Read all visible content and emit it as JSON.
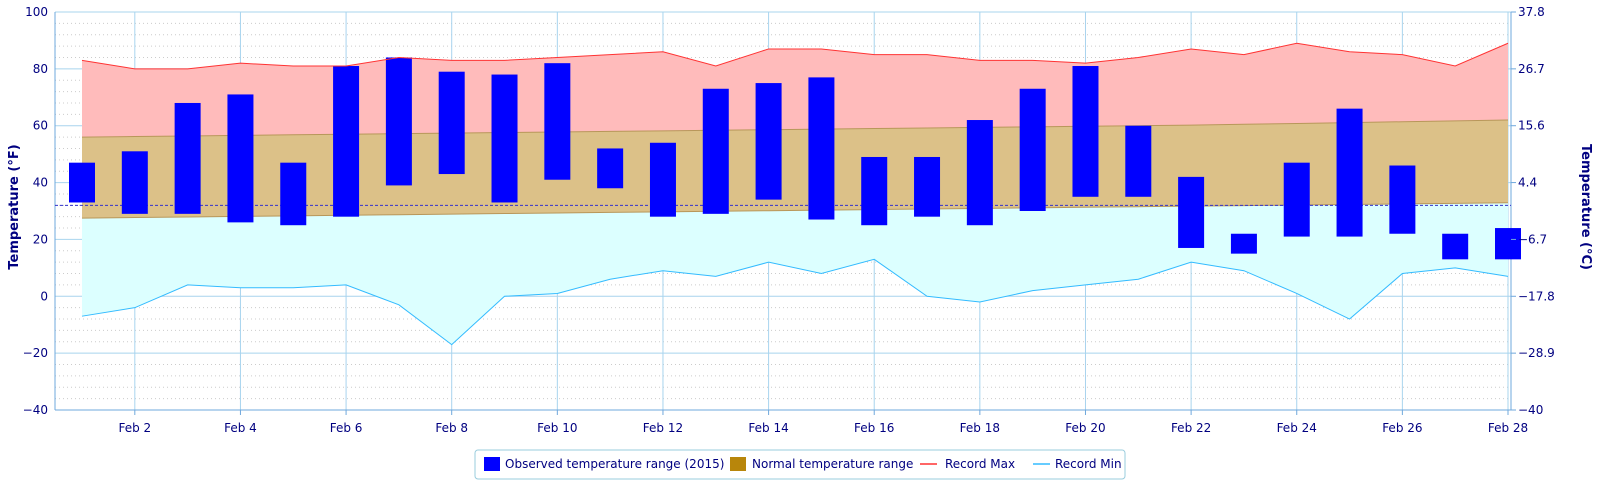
{
  "chart_data": {
    "type": "bar",
    "x": [
      "Feb 1",
      "Feb 2",
      "Feb 3",
      "Feb 4",
      "Feb 5",
      "Feb 6",
      "Feb 7",
      "Feb 8",
      "Feb 9",
      "Feb 10",
      "Feb 11",
      "Feb 12",
      "Feb 13",
      "Feb 14",
      "Feb 15",
      "Feb 16",
      "Feb 17",
      "Feb 18",
      "Feb 19",
      "Feb 20",
      "Feb 21",
      "Feb 22",
      "Feb 23",
      "Feb 24",
      "Feb 25",
      "Feb 26",
      "Feb 27",
      "Feb 28"
    ],
    "x_tick_labels": [
      "Feb 2",
      "Feb 4",
      "Feb 6",
      "Feb 8",
      "Feb 10",
      "Feb 12",
      "Feb 14",
      "Feb 16",
      "Feb 18",
      "Feb 20",
      "Feb 22",
      "Feb 24",
      "Feb 26",
      "Feb 28"
    ],
    "ylabel_left": "Temperature (°F)",
    "ylabel_right": "Temperature (°C)",
    "ylim": [
      -40,
      100
    ],
    "y_ticks_left": [
      "100",
      "80",
      "60",
      "40",
      "20",
      "0",
      "−20",
      "−40"
    ],
    "y_ticks_right": [
      "37.8",
      "26.7",
      "15.6",
      "4.4",
      "−6.7",
      "−17.8",
      "−28.9",
      "−40"
    ],
    "grid": true,
    "freezing_line": 32,
    "series": [
      {
        "name": "Observed temperature range (2015)",
        "color": "#0000ff",
        "low": [
          33,
          29,
          29,
          26,
          25,
          28,
          39,
          43,
          33,
          41,
          38,
          28,
          29,
          34,
          27,
          25,
          28,
          25,
          30,
          35,
          35,
          17,
          15,
          21,
          21,
          22,
          13,
          13
        ],
        "high": [
          47,
          51,
          68,
          71,
          47,
          81,
          84,
          79,
          78,
          82,
          52,
          54,
          73,
          75,
          77,
          49,
          49,
          62,
          73,
          81,
          60,
          42,
          22,
          47,
          66,
          46,
          22,
          24
        ]
      },
      {
        "name": "Normal temperature range",
        "color": "#b8860b",
        "low": [
          27.5,
          27.7,
          27.9,
          28.1,
          28.3,
          28.5,
          28.7,
          28.9,
          29.1,
          29.3,
          29.5,
          29.7,
          29.9,
          30.1,
          30.3,
          30.5,
          30.7,
          30.9,
          31.1,
          31.3,
          31.5,
          31.7,
          31.9,
          32.1,
          32.3,
          32.5,
          32.7,
          32.9
        ],
        "high": [
          56,
          56.2,
          56.4,
          56.6,
          56.8,
          57,
          57.2,
          57.4,
          57.6,
          57.8,
          58,
          58.2,
          58.4,
          58.6,
          58.8,
          59,
          59.2,
          59.4,
          59.6,
          59.8,
          60,
          60.2,
          60.5,
          60.8,
          61.1,
          61.4,
          61.7,
          62
        ]
      },
      {
        "name": "Record Max",
        "color": "#ff3333",
        "values": [
          83,
          80,
          80,
          82,
          81,
          81,
          84,
          83,
          83,
          84,
          85,
          86,
          81,
          87,
          87,
          85,
          85,
          83,
          83,
          82,
          84,
          87,
          85,
          89,
          86,
          85,
          81,
          89
        ]
      },
      {
        "name": "Record Min",
        "color": "#33bbff",
        "values": [
          -7,
          -4,
          4,
          3,
          3,
          4,
          -3,
          -17,
          0,
          1,
          6,
          9,
          7,
          12,
          8,
          13,
          0,
          -2,
          2,
          4,
          6,
          12,
          9,
          1,
          -8,
          8,
          10,
          7
        ]
      }
    ]
  }
}
